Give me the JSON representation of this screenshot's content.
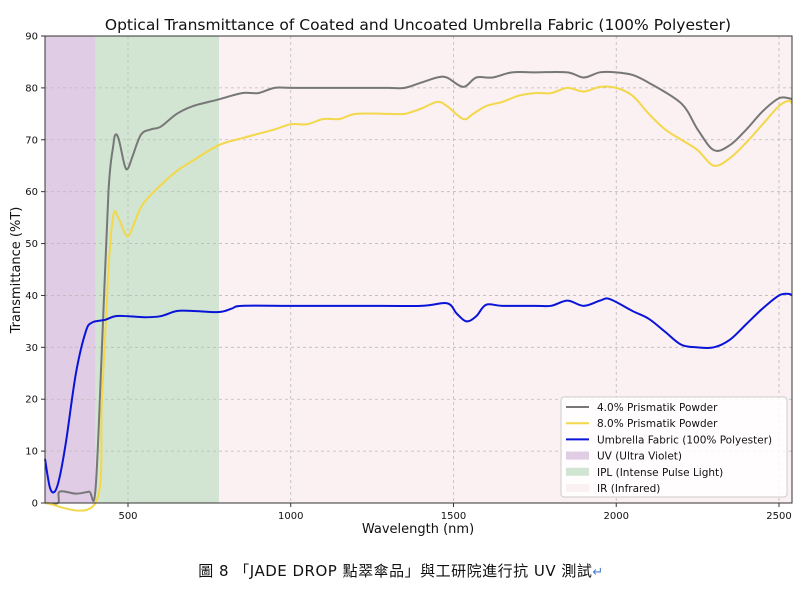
{
  "chart_data": {
    "type": "line",
    "title": "Optical Transmittance of Coated and Uncoated Umbrella Fabric (100% Polyester)",
    "xlabel": "Wavelength (nm)",
    "ylabel": "Transmittance (%T)",
    "xlim": [
      245,
      2540
    ],
    "ylim": [
      0,
      90
    ],
    "xticks": [
      500,
      1000,
      1500,
      2000,
      2500
    ],
    "yticks": [
      0,
      10,
      20,
      30,
      40,
      50,
      60,
      70,
      80,
      90
    ],
    "grid": true,
    "legend_position": "lower right",
    "regions": [
      {
        "name": "UV (Ultra Violet)",
        "x0": 245,
        "x1": 400,
        "color": "#e0cce4"
      },
      {
        "name": "IPL (Intense Pulse Light)",
        "x0": 400,
        "x1": 780,
        "color": "#d2e5d2"
      },
      {
        "name": "IR (Infrared)",
        "x0": 780,
        "x1": 2540,
        "color": "#fbf0f2"
      }
    ],
    "series": [
      {
        "name": "4.0% Prismatik Powder",
        "color": "#777777",
        "points": [
          [
            245,
            0
          ],
          [
            285,
            0
          ],
          [
            290,
            2.2
          ],
          [
            340,
            1.8
          ],
          [
            380,
            2.2
          ],
          [
            400,
            2.5
          ],
          [
            420,
            30
          ],
          [
            440,
            60
          ],
          [
            455,
            69
          ],
          [
            462,
            71
          ],
          [
            472,
            70
          ],
          [
            490,
            65
          ],
          [
            500,
            64.5
          ],
          [
            515,
            67
          ],
          [
            540,
            71
          ],
          [
            570,
            72
          ],
          [
            600,
            72.5
          ],
          [
            650,
            75
          ],
          [
            700,
            76.5
          ],
          [
            780,
            77.8
          ],
          [
            850,
            79
          ],
          [
            900,
            79
          ],
          [
            950,
            80
          ],
          [
            1000,
            80
          ],
          [
            1100,
            80
          ],
          [
            1200,
            80
          ],
          [
            1300,
            80
          ],
          [
            1350,
            80
          ],
          [
            1400,
            81
          ],
          [
            1450,
            82
          ],
          [
            1480,
            82
          ],
          [
            1530,
            80.2
          ],
          [
            1570,
            82
          ],
          [
            1620,
            82
          ],
          [
            1680,
            83
          ],
          [
            1750,
            83
          ],
          [
            1850,
            83
          ],
          [
            1900,
            82
          ],
          [
            1950,
            83
          ],
          [
            2000,
            83
          ],
          [
            2050,
            82.5
          ],
          [
            2100,
            81
          ],
          [
            2200,
            77
          ],
          [
            2250,
            72
          ],
          [
            2300,
            68
          ],
          [
            2350,
            69
          ],
          [
            2400,
            72
          ],
          [
            2450,
            75.5
          ],
          [
            2500,
            78
          ],
          [
            2530,
            78
          ],
          [
            2540,
            77.8
          ]
        ]
      },
      {
        "name": "8.0% Prismatik Powder",
        "color": "#f2d84a",
        "points": [
          [
            245,
            0
          ],
          [
            400,
            0
          ],
          [
            420,
            20
          ],
          [
            440,
            45
          ],
          [
            455,
            55.5
          ],
          [
            470,
            55
          ],
          [
            495,
            51.5
          ],
          [
            510,
            52.5
          ],
          [
            540,
            57
          ],
          [
            580,
            60
          ],
          [
            650,
            64
          ],
          [
            700,
            66
          ],
          [
            780,
            69
          ],
          [
            850,
            70.3
          ],
          [
            950,
            72
          ],
          [
            1000,
            73
          ],
          [
            1050,
            73
          ],
          [
            1100,
            74
          ],
          [
            1150,
            74
          ],
          [
            1200,
            75
          ],
          [
            1300,
            75
          ],
          [
            1350,
            75
          ],
          [
            1400,
            76
          ],
          [
            1450,
            77.3
          ],
          [
            1480,
            76.5
          ],
          [
            1530,
            74
          ],
          [
            1560,
            75
          ],
          [
            1600,
            76.5
          ],
          [
            1650,
            77.3
          ],
          [
            1700,
            78.5
          ],
          [
            1750,
            79
          ],
          [
            1800,
            79
          ],
          [
            1850,
            80
          ],
          [
            1900,
            79.3
          ],
          [
            1950,
            80.2
          ],
          [
            2000,
            80
          ],
          [
            2050,
            78.5
          ],
          [
            2100,
            75
          ],
          [
            2150,
            72
          ],
          [
            2200,
            70
          ],
          [
            2250,
            68
          ],
          [
            2300,
            65
          ],
          [
            2350,
            66.5
          ],
          [
            2400,
            69.5
          ],
          [
            2450,
            73
          ],
          [
            2500,
            76.5
          ],
          [
            2530,
            77.5
          ],
          [
            2540,
            77
          ]
        ]
      },
      {
        "name": "Umbrella Fabric (100% Polyester)",
        "color": "#0a14d8",
        "points": [
          [
            245,
            8.5
          ],
          [
            260,
            3
          ],
          [
            275,
            2.2
          ],
          [
            290,
            5
          ],
          [
            310,
            12
          ],
          [
            340,
            25
          ],
          [
            370,
            33
          ],
          [
            390,
            34.8
          ],
          [
            430,
            35.3
          ],
          [
            460,
            36
          ],
          [
            500,
            36
          ],
          [
            550,
            35.8
          ],
          [
            600,
            36
          ],
          [
            650,
            37
          ],
          [
            700,
            37
          ],
          [
            780,
            36.8
          ],
          [
            820,
            37.5
          ],
          [
            850,
            38
          ],
          [
            1000,
            38
          ],
          [
            1200,
            38
          ],
          [
            1400,
            38
          ],
          [
            1480,
            38.5
          ],
          [
            1510,
            36.5
          ],
          [
            1540,
            35
          ],
          [
            1570,
            36
          ],
          [
            1600,
            38.2
          ],
          [
            1650,
            38
          ],
          [
            1750,
            38
          ],
          [
            1800,
            38
          ],
          [
            1850,
            39
          ],
          [
            1900,
            38
          ],
          [
            1950,
            39
          ],
          [
            1980,
            39.3
          ],
          [
            2050,
            37
          ],
          [
            2100,
            35.5
          ],
          [
            2150,
            33
          ],
          [
            2200,
            30.5
          ],
          [
            2250,
            30
          ],
          [
            2300,
            30
          ],
          [
            2350,
            31.5
          ],
          [
            2400,
            34.5
          ],
          [
            2450,
            37.5
          ],
          [
            2500,
            40
          ],
          [
            2530,
            40.3
          ],
          [
            2540,
            40
          ]
        ]
      }
    ]
  },
  "caption": {
    "text": "圖 8 「JADE DROP 點翠傘品」與工研院進行抗 UV 測試",
    "return_mark": "↵"
  }
}
